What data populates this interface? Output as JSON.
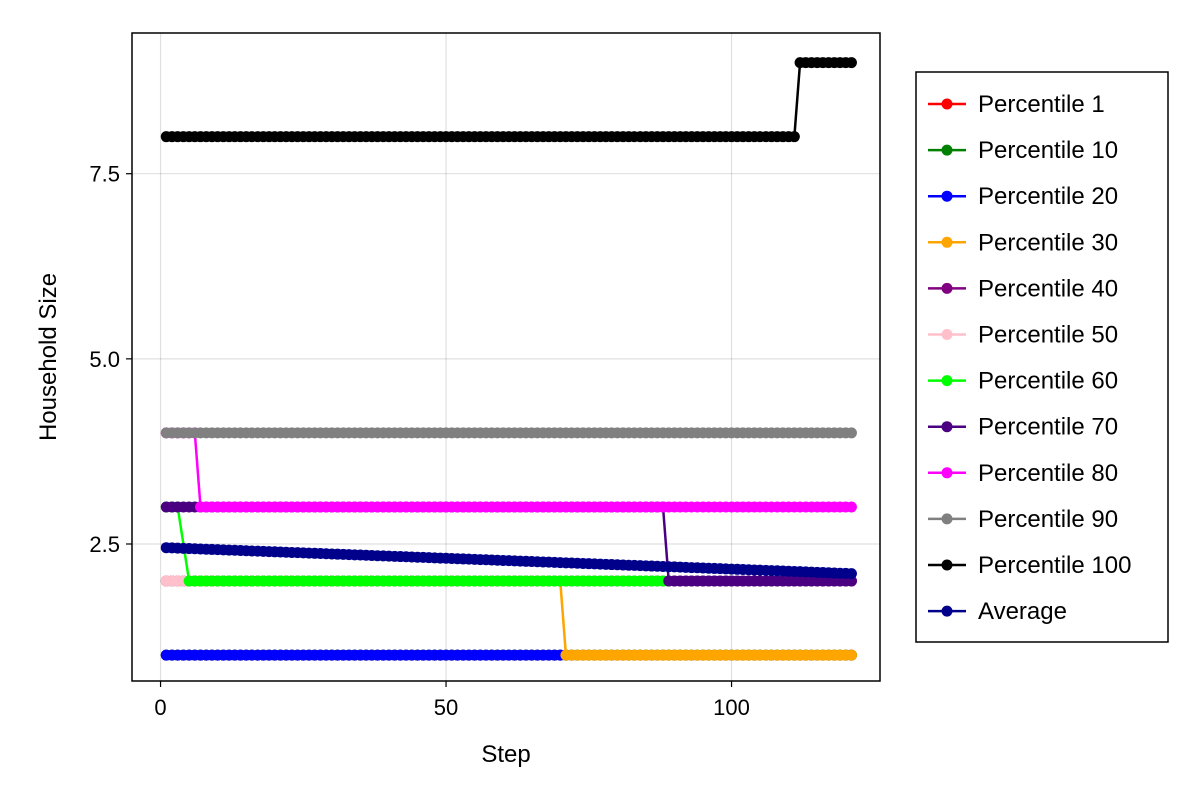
{
  "chart_data": {
    "type": "line",
    "xlabel": "Step",
    "ylabel": "Household Size",
    "xlim": [
      -5,
      126
    ],
    "ylim": [
      0.65,
      9.4
    ],
    "x_ticks": [
      0,
      50,
      100
    ],
    "x_tick_labels": [
      "0",
      "50",
      "100"
    ],
    "y_ticks": [
      2.5,
      5.0,
      7.5
    ],
    "y_tick_labels": [
      "2.5",
      "5.0",
      "7.5"
    ],
    "grid": true,
    "legend_position": "right-outside",
    "x_step_min": 1,
    "x_step_max": 121,
    "series": [
      {
        "name": "Percentile 1",
        "color": "#ff0000",
        "segments": [
          {
            "from": 1,
            "to": 121,
            "value": 1.0
          }
        ]
      },
      {
        "name": "Percentile 10",
        "color": "#008000",
        "segments": [
          {
            "from": 1,
            "to": 121,
            "value": 1.0
          }
        ]
      },
      {
        "name": "Percentile 20",
        "color": "#0000ff",
        "segments": [
          {
            "from": 1,
            "to": 71,
            "value": 1.0
          }
        ]
      },
      {
        "name": "Percentile 30",
        "color": "#ffa500",
        "segments": [
          {
            "from": 1,
            "to": 70,
            "value": 2.0
          },
          {
            "from": 71,
            "to": 121,
            "value": 1.0
          }
        ]
      },
      {
        "name": "Percentile 40",
        "color": "#800080",
        "segments": [
          {
            "from": 1,
            "to": 121,
            "value": 2.0
          }
        ]
      },
      {
        "name": "Percentile 50",
        "color": "#ffc0cb",
        "segments": [
          {
            "from": 1,
            "to": 4,
            "value": 2.0
          }
        ]
      },
      {
        "name": "Percentile 60",
        "color": "#00ff00",
        "segments": [
          {
            "from": 1,
            "to": 3,
            "value": 3.0
          },
          {
            "from": 5,
            "to": 89,
            "value": 2.0
          }
        ]
      },
      {
        "name": "Percentile 70",
        "color": "#4b0082",
        "segments": [
          {
            "from": 1,
            "to": 88,
            "value": 3.0
          },
          {
            "from": 89,
            "to": 121,
            "value": 2.0
          }
        ]
      },
      {
        "name": "Percentile 80",
        "color": "#ff00ff",
        "segments": [
          {
            "from": 1,
            "to": 6,
            "value": 4.0
          },
          {
            "from": 7,
            "to": 121,
            "value": 3.0
          }
        ]
      },
      {
        "name": "Percentile 90",
        "color": "#808080",
        "segments": [
          {
            "from": 1,
            "to": 121,
            "value": 4.0
          }
        ]
      },
      {
        "name": "Percentile 100",
        "color": "#000000",
        "segments": [
          {
            "from": 1,
            "to": 111,
            "value": 8.0
          },
          {
            "from": 112,
            "to": 121,
            "value": 9.0
          }
        ]
      },
      {
        "name": "Average",
        "color": "#00008b",
        "trend": {
          "from": 1,
          "to": 121,
          "start": 2.45,
          "end": 2.1
        }
      }
    ]
  }
}
